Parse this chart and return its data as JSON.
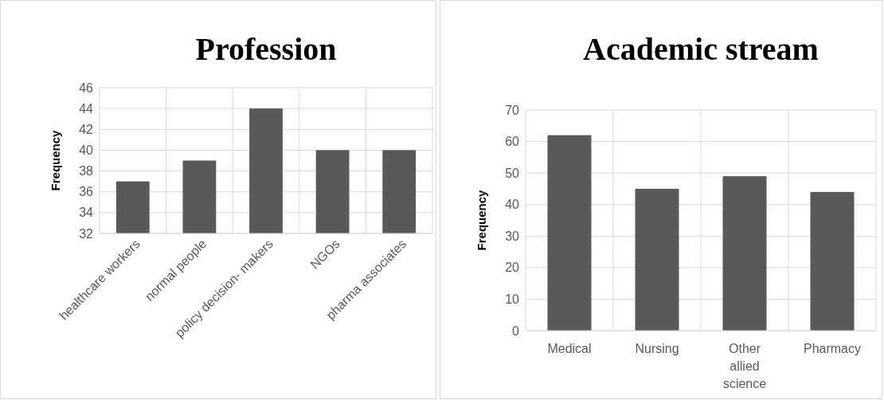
{
  "chart_data": [
    {
      "type": "bar",
      "title": "Profession",
      "ylabel": "Frequency",
      "categories": [
        "healthcare workers",
        "normal people",
        "policy decision- makers",
        "NGOs",
        "pharma associates"
      ],
      "values": [
        37,
        39,
        44,
        40,
        40
      ],
      "color": "#595959",
      "ylim": [
        32,
        46
      ],
      "yticks": [
        32,
        34,
        36,
        38,
        40,
        42,
        44,
        46
      ],
      "grid": true
    },
    {
      "type": "bar",
      "title": "Academic stream",
      "ylabel": "Frequency",
      "categories": [
        "Medical",
        "Nursing",
        "Other allied science",
        "Pharmacy"
      ],
      "values": [
        62,
        45,
        49,
        44
      ],
      "color": "#595959",
      "ylim": [
        0,
        70
      ],
      "yticks": [
        0,
        10,
        20,
        30,
        40,
        50,
        60,
        70
      ],
      "grid": true
    }
  ]
}
